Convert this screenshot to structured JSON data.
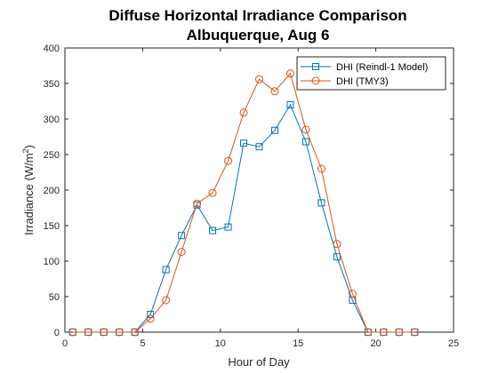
{
  "chart_data": {
    "type": "line",
    "title": [
      "Diffuse Horizontal Irradiance Comparison",
      "Albuquerque, Aug 6"
    ],
    "xlabel": "Hour of Day",
    "ylabel": "Irradiance (W/m",
    "ylabel_superscript": "2",
    "ylabel_suffix": ")",
    "xlim": [
      0,
      25
    ],
    "ylim": [
      0,
      400
    ],
    "xticks": [
      0,
      5,
      10,
      15,
      20,
      25
    ],
    "yticks": [
      0,
      50,
      100,
      150,
      200,
      250,
      300,
      350,
      400
    ],
    "grid": false,
    "legend": "top-right",
    "x": [
      0.5,
      1.5,
      2.5,
      3.5,
      4.5,
      5.5,
      6.5,
      7.5,
      8.5,
      9.5,
      10.5,
      11.5,
      12.5,
      13.5,
      14.5,
      15.5,
      16.5,
      17.5,
      18.5,
      19.5,
      20.5,
      21.5,
      22.5
    ],
    "series": [
      {
        "name": "DHI (Reindl-1 Model)",
        "color": "#0072BD",
        "marker": "square",
        "values": [
          0,
          0,
          0,
          0,
          0,
          25,
          88,
          136,
          179,
          143,
          148,
          266,
          261,
          284,
          320,
          268,
          182,
          106,
          45,
          0,
          0,
          0,
          0
        ]
      },
      {
        "name": "DHI (TMY3)",
        "color": "#D95319",
        "marker": "circle",
        "values": [
          0,
          0,
          0,
          0,
          0,
          19,
          45,
          113,
          181,
          196,
          241,
          309,
          356,
          339,
          364,
          285,
          230,
          124,
          54,
          0,
          0,
          0,
          0
        ]
      }
    ]
  }
}
